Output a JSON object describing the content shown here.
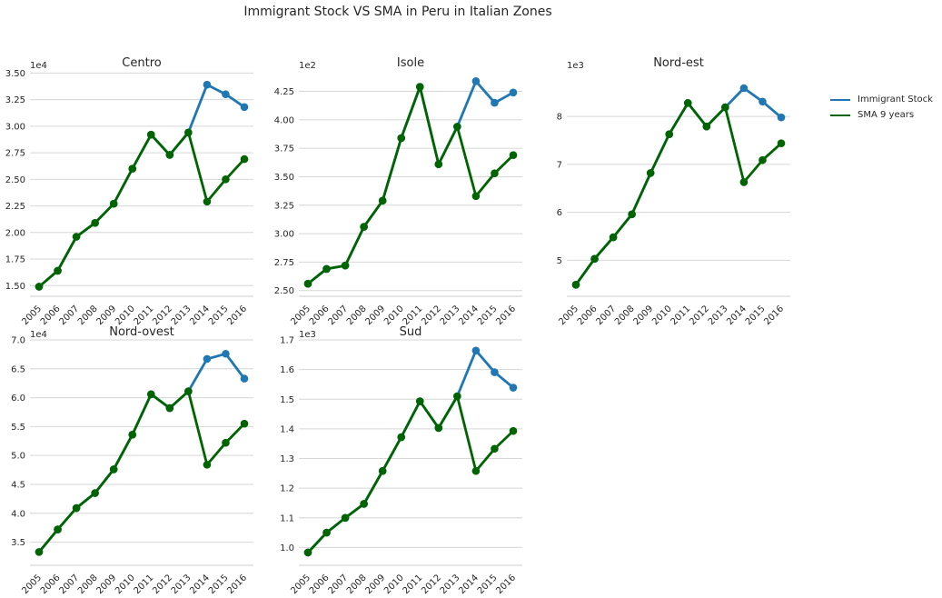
{
  "title": "Immigrant Stock VS SMA in Peru in Italian Zones",
  "legend": {
    "items": [
      {
        "label": "Immigrant Stock",
        "color": "#1f77b4"
      },
      {
        "label": "SMA 9 years",
        "color": "#006400"
      }
    ]
  },
  "chart_data": [
    {
      "type": "line",
      "title": "Centro",
      "exponent_label": "1e4",
      "x": [
        "2005",
        "2006",
        "2007",
        "2008",
        "2009",
        "2010",
        "2011",
        "2012",
        "2013",
        "2014",
        "2015",
        "2016"
      ],
      "yticks": [
        "1.50",
        "1.75",
        "2.00",
        "2.25",
        "2.50",
        "2.75",
        "3.00",
        "3.25",
        "3.50"
      ],
      "ylim": [
        1.4,
        3.52
      ],
      "series": [
        {
          "name": "Immigrant Stock",
          "color": "#1f77b4",
          "values": [
            1.49,
            1.64,
            1.96,
            2.09,
            2.27,
            2.6,
            2.92,
            2.73,
            2.94,
            3.39,
            3.3,
            3.18
          ]
        },
        {
          "name": "SMA 9 years",
          "color": "#006400",
          "values": [
            1.49,
            1.64,
            1.96,
            2.09,
            2.27,
            2.6,
            2.92,
            2.73,
            2.94,
            2.29,
            2.5,
            2.69
          ]
        }
      ]
    },
    {
      "type": "line",
      "title": "Isole",
      "exponent_label": "1e2",
      "x": [
        "2005",
        "2006",
        "2007",
        "2008",
        "2009",
        "2010",
        "2011",
        "2012",
        "2013",
        "2014",
        "2015",
        "2016"
      ],
      "yticks": [
        "2.50",
        "2.75",
        "3.00",
        "3.25",
        "3.50",
        "3.75",
        "4.00",
        "4.25"
      ],
      "ylim": [
        2.45,
        4.43
      ],
      "series": [
        {
          "name": "Immigrant Stock",
          "color": "#1f77b4",
          "values": [
            2.56,
            2.69,
            2.72,
            3.06,
            3.29,
            3.84,
            4.29,
            3.61,
            3.94,
            4.34,
            4.15,
            4.24
          ]
        },
        {
          "name": "SMA 9 years",
          "color": "#006400",
          "values": [
            2.56,
            2.69,
            2.72,
            3.06,
            3.29,
            3.84,
            4.29,
            3.61,
            3.94,
            3.33,
            3.53,
            3.69
          ]
        }
      ]
    },
    {
      "type": "line",
      "title": "Nord-est",
      "exponent_label": "1e3",
      "x": [
        "2005",
        "2006",
        "2007",
        "2008",
        "2009",
        "2010",
        "2011",
        "2012",
        "2013",
        "2014",
        "2015",
        "2016"
      ],
      "yticks": [
        "5",
        "6",
        "7",
        "8"
      ],
      "ylim": [
        4.25,
        8.95
      ],
      "series": [
        {
          "name": "Immigrant Stock",
          "color": "#1f77b4",
          "values": [
            4.49,
            5.03,
            5.48,
            5.96,
            6.82,
            7.63,
            8.28,
            7.79,
            8.19,
            8.59,
            8.31,
            7.98
          ]
        },
        {
          "name": "SMA 9 years",
          "color": "#006400",
          "values": [
            4.49,
            5.03,
            5.48,
            5.96,
            6.82,
            7.63,
            8.28,
            7.79,
            8.19,
            6.63,
            7.09,
            7.44
          ]
        }
      ]
    },
    {
      "type": "line",
      "title": "Nord-ovest",
      "exponent_label": "1e4",
      "x": [
        "2005",
        "2006",
        "2007",
        "2008",
        "2009",
        "2010",
        "2011",
        "2012",
        "2013",
        "2014",
        "2015",
        "2016"
      ],
      "yticks": [
        "3.5",
        "4.0",
        "4.5",
        "5.0",
        "5.5",
        "6.0",
        "6.5",
        "7.0"
      ],
      "ylim": [
        3.1,
        7.0
      ],
      "series": [
        {
          "name": "Immigrant Stock",
          "color": "#1f77b4",
          "values": [
            3.33,
            3.72,
            4.09,
            4.35,
            4.76,
            5.36,
            6.06,
            5.82,
            6.11,
            6.67,
            6.76,
            6.33
          ]
        },
        {
          "name": "SMA 9 years",
          "color": "#006400",
          "values": [
            3.33,
            3.72,
            4.09,
            4.35,
            4.76,
            5.36,
            6.06,
            5.82,
            6.11,
            4.84,
            5.22,
            5.55
          ]
        }
      ]
    },
    {
      "type": "line",
      "title": "Sud",
      "exponent_label": "1e3",
      "x": [
        "2005",
        "2006",
        "2007",
        "2008",
        "2009",
        "2010",
        "2011",
        "2012",
        "2013",
        "2014",
        "2015",
        "2016"
      ],
      "yticks": [
        "1.0",
        "1.1",
        "1.2",
        "1.3",
        "1.4",
        "1.5",
        "1.6",
        "1.7"
      ],
      "ylim": [
        0.94,
        1.7
      ],
      "series": [
        {
          "name": "Immigrant Stock",
          "color": "#1f77b4",
          "values": [
            0.983,
            1.05,
            1.1,
            1.147,
            1.258,
            1.372,
            1.493,
            1.403,
            1.51,
            1.664,
            1.591,
            1.539
          ]
        },
        {
          "name": "SMA 9 years",
          "color": "#006400",
          "values": [
            0.983,
            1.05,
            1.1,
            1.147,
            1.258,
            1.372,
            1.493,
            1.403,
            1.51,
            1.258,
            1.333,
            1.393
          ]
        }
      ]
    }
  ]
}
